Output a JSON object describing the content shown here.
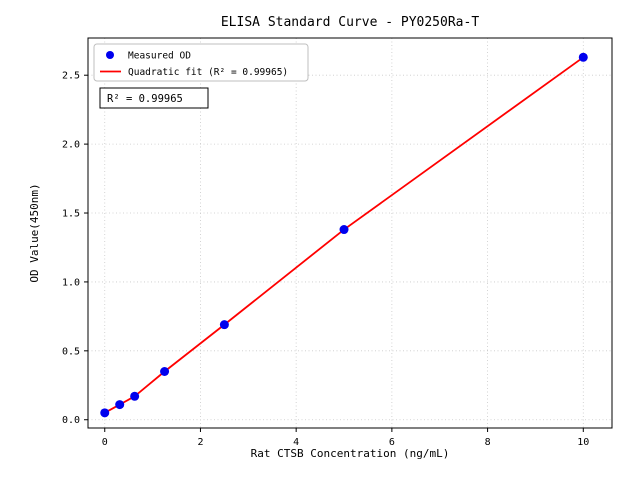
{
  "chart_data": {
    "type": "scatter",
    "title": "ELISA Standard Curve - PY0250Ra-T",
    "xlabel": "Rat CTSB Concentration (ng/mL)",
    "ylabel": "OD Value(450nm)",
    "x": [
      0,
      0.3125,
      0.625,
      1.25,
      2.5,
      5,
      10
    ],
    "y": [
      0.05,
      0.11,
      0.17,
      0.35,
      0.69,
      1.38,
      2.63
    ],
    "fit": {
      "type": "quadratic",
      "r_squared": 0.99965
    },
    "xlim": [
      -0.35,
      10.6
    ],
    "ylim": [
      -0.06,
      2.77
    ],
    "xtick_values": [
      0,
      2,
      4,
      6,
      8,
      10
    ],
    "xtick_labels": [
      "0",
      "2",
      "4",
      "6",
      "8",
      "10"
    ],
    "ytick_values": [
      0,
      0.5,
      1,
      1.5,
      2,
      2.5
    ],
    "ytick_labels": [
      "0.0",
      "0.5",
      "1.0",
      "1.5",
      "2.0",
      "2.5"
    ],
    "grid": true,
    "legend": {
      "position": "upper left",
      "items": [
        {
          "label": "Measured OD",
          "marker": "point",
          "color": "#0000ee"
        },
        {
          "label": "Quadratic fit (R² = 0.99965)",
          "marker": "line",
          "color": "#ff0000"
        }
      ]
    },
    "annotation": "R² = 0.99965",
    "colors": {
      "points": "#0000ee",
      "fit_line": "#ff0000"
    }
  }
}
